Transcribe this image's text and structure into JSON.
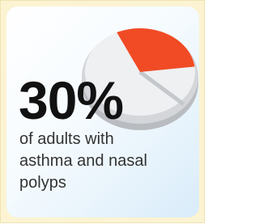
{
  "chart_data": {
    "type": "pie",
    "values": [
      30
    ],
    "value_labels": [
      "30%"
    ],
    "color": "#f04b24",
    "caption": "of adults with asthma and nasal polyps"
  }
}
